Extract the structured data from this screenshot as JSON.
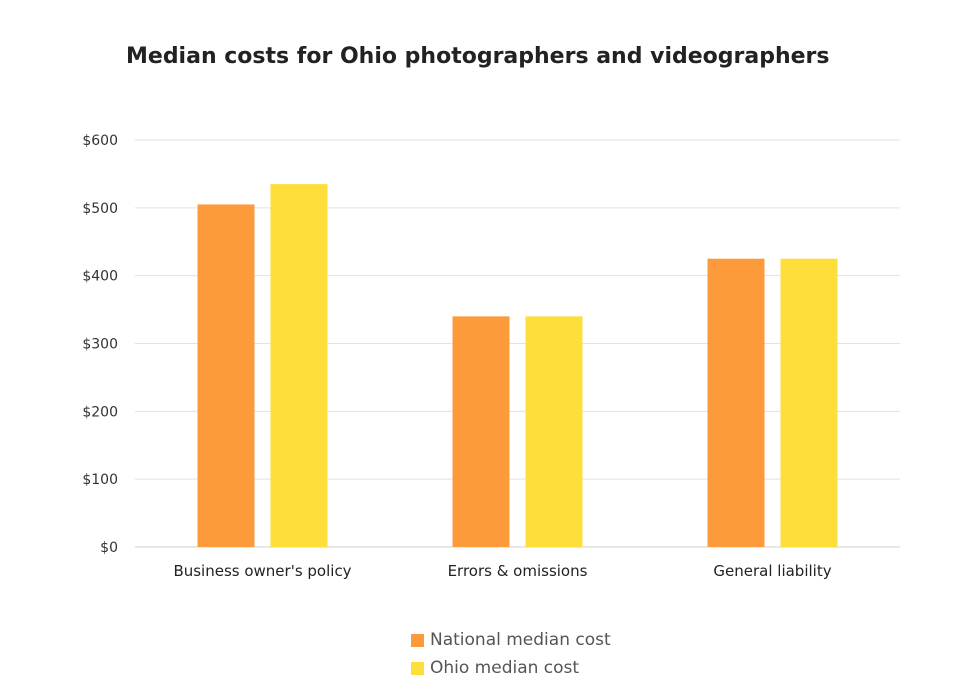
{
  "chart_data": {
    "type": "bar",
    "title": "Median costs for Ohio photographers and videographers",
    "categories": [
      "Business owner's policy",
      "Errors & omissions",
      "General liability"
    ],
    "series": [
      {
        "name": "National median cost",
        "color": "#FD9A3B",
        "values": [
          505,
          340,
          425
        ]
      },
      {
        "name": "Ohio median cost",
        "color": "#FEDE3A",
        "values": [
          535,
          340,
          425
        ]
      }
    ],
    "ylim": [
      0,
      600
    ],
    "yticks": [
      0,
      100,
      200,
      300,
      400,
      500,
      600
    ],
    "ytick_labels": [
      "$0",
      "$100",
      "$200",
      "$300",
      "$400",
      "$500",
      "$600"
    ],
    "grid": true,
    "legend_position": "bottom"
  }
}
